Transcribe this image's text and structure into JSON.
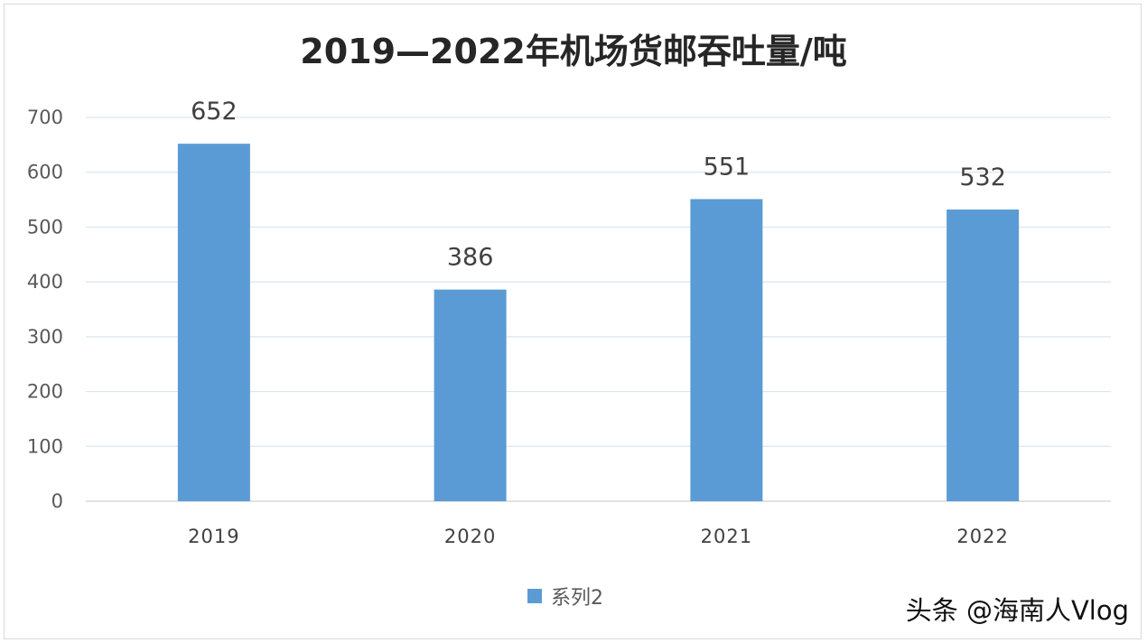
{
  "chart_data": {
    "type": "bar",
    "title": "2019—2022年机场货邮吞吐量/吨",
    "categories": [
      "2019",
      "2020",
      "2021",
      "2022"
    ],
    "series": [
      {
        "name": "系列2",
        "values": [
          652,
          386,
          551,
          532
        ],
        "color": "#5b9bd5"
      }
    ],
    "data_labels": [
      "652",
      "386",
      "551",
      "532"
    ],
    "y_ticks": [
      "0",
      "100",
      "200",
      "300",
      "400",
      "500",
      "600",
      "700"
    ],
    "ylim": [
      0,
      700
    ],
    "grid": true,
    "legend_position": "bottom"
  },
  "watermark": "头条 @海南人Vlog",
  "colors": {
    "grid": "#d9e6f2",
    "axis": "#d0d0d0"
  }
}
